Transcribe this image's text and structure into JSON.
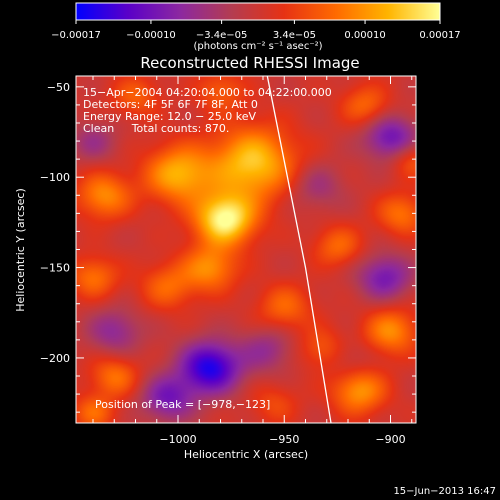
{
  "chart_data": {
    "type": "heatmap",
    "title": "Reconstructed RHESSI Image",
    "xlabel": "Heliocentric X (arcsec)",
    "ylabel": "Heliocentric Y (arcsec)",
    "xlim": [
      -1048,
      -888
    ],
    "ylim": [
      -236,
      -44
    ],
    "x_ticks": [
      -1000,
      -950,
      -900
    ],
    "x_tick_labels": [
      "−1000",
      "−950",
      "−900"
    ],
    "y_ticks": [
      -50,
      -100,
      -150,
      -200
    ],
    "y_tick_labels": [
      "−50",
      "−100",
      "−150",
      "−200"
    ],
    "colorbar": {
      "min": -0.00017,
      "max": 0.00017,
      "ticks": [
        -0.00017,
        -0.0001,
        -3.4e-05,
        3.4e-05,
        0.0001,
        0.00017
      ],
      "tick_labels": [
        "−0.00017",
        "−0.00010",
        "−3.4e−05",
        "3.4e−05",
        "0.00010",
        "0.00017"
      ],
      "unit_label": "(photons cm⁻² s⁻¹ asec⁻²)",
      "colors": [
        "#0000ff",
        "#5a00c8",
        "#8c28a0",
        "#b43c50",
        "#e63214",
        "#ff6a00",
        "#ffb400",
        "#ffff96"
      ]
    },
    "annotations": [
      "15−Apr−2004 04:20:04.000 to 04:22:00.000",
      "Detectors: 4F 5F 6F 7F 8F, Att 0",
      "Energy Range: 12.0 − 25.0 keV",
      "Clean     Total counts: 870."
    ],
    "peak_label": "Position of Peak = [−978,−123]",
    "peak": [
      -978,
      -123
    ],
    "limb": [
      [
        -958,
        -44
      ],
      [
        -940,
        -150
      ],
      [
        -928,
        -236
      ]
    ],
    "blobs": [
      {
        "x": -978,
        "y": -123,
        "v": 1.0,
        "s": 10
      },
      {
        "x": -965,
        "y": -92,
        "v": 0.8,
        "s": 14
      },
      {
        "x": -1000,
        "y": -98,
        "v": 0.7,
        "s": 11
      },
      {
        "x": -985,
        "y": -150,
        "v": 0.55,
        "s": 9
      },
      {
        "x": -1005,
        "y": -160,
        "v": 0.4,
        "s": 9
      },
      {
        "x": -1035,
        "y": -110,
        "v": 0.55,
        "s": 9
      },
      {
        "x": -1040,
        "y": -155,
        "v": 0.45,
        "s": 8
      },
      {
        "x": -1020,
        "y": -55,
        "v": 0.35,
        "s": 8
      },
      {
        "x": -1030,
        "y": -210,
        "v": 0.45,
        "s": 8
      },
      {
        "x": -1040,
        "y": -230,
        "v": 0.4,
        "s": 7
      },
      {
        "x": -950,
        "y": -172,
        "v": 0.4,
        "s": 9
      },
      {
        "x": -932,
        "y": -195,
        "v": 0.35,
        "s": 8
      },
      {
        "x": -915,
        "y": -218,
        "v": 0.6,
        "s": 9
      },
      {
        "x": -900,
        "y": -185,
        "v": 0.55,
        "s": 9
      },
      {
        "x": -895,
        "y": -120,
        "v": 0.45,
        "s": 8
      },
      {
        "x": -925,
        "y": -138,
        "v": 0.4,
        "s": 8
      },
      {
        "x": -912,
        "y": -60,
        "v": 0.4,
        "s": 8
      },
      {
        "x": -890,
        "y": -90,
        "v": 0.35,
        "s": 7
      },
      {
        "x": -955,
        "y": -225,
        "v": 0.25,
        "s": 8
      },
      {
        "x": -980,
        "y": -52,
        "v": 0.35,
        "s": 8
      },
      {
        "x": -985,
        "y": -205,
        "v": -0.9,
        "s": 10
      },
      {
        "x": -1005,
        "y": -222,
        "v": -0.55,
        "s": 9
      },
      {
        "x": -900,
        "y": -78,
        "v": -0.6,
        "s": 9
      },
      {
        "x": -903,
        "y": -155,
        "v": -0.55,
        "s": 9
      },
      {
        "x": -958,
        "y": -195,
        "v": -0.35,
        "s": 9
      },
      {
        "x": -1030,
        "y": -185,
        "v": -0.4,
        "s": 9
      },
      {
        "x": -935,
        "y": -105,
        "v": -0.3,
        "s": 9
      },
      {
        "x": -1040,
        "y": -80,
        "v": -0.3,
        "s": 8
      },
      {
        "x": -920,
        "y": -200,
        "v": -0.2,
        "s": 8
      }
    ]
  },
  "footer": {
    "date_stamp": "15−Jun−2013 16:47"
  }
}
